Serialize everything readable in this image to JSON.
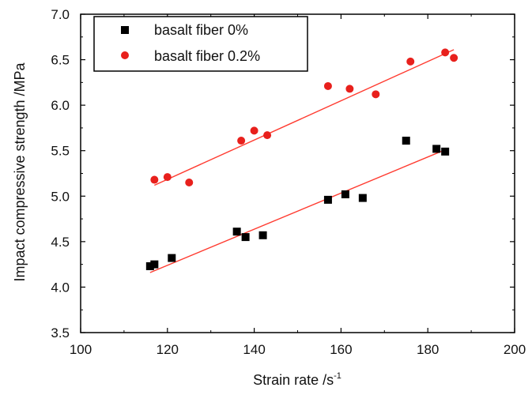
{
  "chart_data": {
    "type": "scatter",
    "title": "",
    "xlabel": "Strain rate /s",
    "xlabel_superscript": "-1",
    "ylabel": "Impact compressive strength /MPa",
    "xlim": [
      100,
      200
    ],
    "ylim": [
      3.5,
      7.0
    ],
    "xticks": [
      100,
      120,
      140,
      160,
      180,
      200
    ],
    "yticks": [
      3.5,
      4.0,
      4.5,
      5.0,
      5.5,
      6.0,
      6.5,
      7.0
    ],
    "xtick_labels": [
      "100",
      "120",
      "140",
      "160",
      "180",
      "200"
    ],
    "ytick_labels": [
      "3.5",
      "4.0",
      "4.5",
      "5.0",
      "5.5",
      "6.0",
      "6.5",
      "7.0"
    ],
    "grid": false,
    "legend_position": "top-left",
    "series": [
      {
        "name": "basalt fiber 0%",
        "marker": "square",
        "color": "#000000",
        "fit_color": "#ff3b30",
        "points": [
          {
            "x": 116,
            "y": 4.23
          },
          {
            "x": 117,
            "y": 4.25
          },
          {
            "x": 121,
            "y": 4.32
          },
          {
            "x": 136,
            "y": 4.61
          },
          {
            "x": 138,
            "y": 4.55
          },
          {
            "x": 142,
            "y": 4.57
          },
          {
            "x": 157,
            "y": 4.96
          },
          {
            "x": 161,
            "y": 5.02
          },
          {
            "x": 165,
            "y": 4.98
          },
          {
            "x": 175,
            "y": 5.61
          },
          {
            "x": 182,
            "y": 5.52
          },
          {
            "x": 184,
            "y": 5.49
          }
        ],
        "fit": {
          "x_start": 116,
          "y_start": 4.16,
          "x_end": 184,
          "y_end": 5.51
        }
      },
      {
        "name": "basalt fiber 0.2%",
        "marker": "circle",
        "color": "#e8201c",
        "fit_color": "#ff3b30",
        "points": [
          {
            "x": 117,
            "y": 5.18
          },
          {
            "x": 120,
            "y": 5.21
          },
          {
            "x": 125,
            "y": 5.15
          },
          {
            "x": 137,
            "y": 5.61
          },
          {
            "x": 140,
            "y": 5.72
          },
          {
            "x": 143,
            "y": 5.67
          },
          {
            "x": 157,
            "y": 6.21
          },
          {
            "x": 162,
            "y": 6.18
          },
          {
            "x": 168,
            "y": 6.12
          },
          {
            "x": 176,
            "y": 6.48
          },
          {
            "x": 184,
            "y": 6.58
          },
          {
            "x": 186,
            "y": 6.52
          }
        ],
        "fit": {
          "x_start": 117,
          "y_start": 5.12,
          "x_end": 186,
          "y_end": 6.61
        }
      }
    ]
  }
}
